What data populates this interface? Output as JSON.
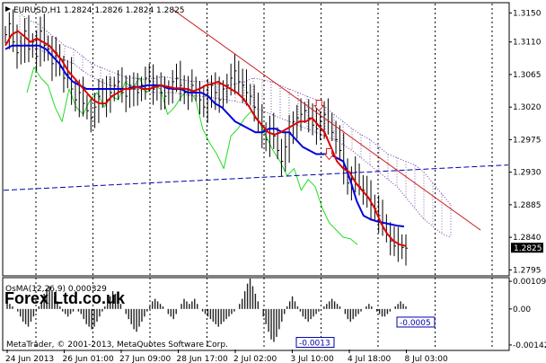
{
  "chart_data": {
    "type": "line",
    "title": "EURUSD,H1  1.2824 1.2826 1.2824 1.2825",
    "watermark": "Forex Ltd.co.uk",
    "copyright": "MetaTrader, © 2001-2013, MetaQuotes Software Corp.",
    "current_price_label": "1.2825",
    "current_price": 1.2825,
    "main_y_ticks": [
      "1.3150",
      "1.3110",
      "1.3065",
      "1.3020",
      "1.2975",
      "1.2930",
      "1.2885",
      "1.2840",
      "1.2795"
    ],
    "main_y_values": [
      1.315,
      1.311,
      1.3065,
      1.302,
      1.2975,
      1.293,
      1.2885,
      1.284,
      1.2795
    ],
    "ylim": [
      1.2788,
      1.3163
    ],
    "x_ticks": [
      "24 Jun 2013",
      "26 Jun 01:00",
      "27 Jun 09:00",
      "28 Jun 17:00",
      "2 Jul 02:00",
      "3 Jul 10:00",
      "4 Jul 18:00",
      "8 Jul 03:00"
    ],
    "indicator": {
      "name": "OsMA(12,26,9) 0.000329",
      "ticks": [
        "0.00109",
        "0.00",
        "-0.00142"
      ],
      "tick_values": [
        0.00109,
        0.0,
        -0.00142
      ],
      "ylim": [
        -0.0016,
        0.0012
      ],
      "labels": [
        {
          "text": "-0.0013",
          "value": -0.0013
        },
        {
          "text": "-0.0005",
          "value": -0.0005
        }
      ],
      "histogram": [
        0.0003,
        0.0002,
        0.0001,
        0.0,
        -0.0001,
        -0.0003,
        -0.0005,
        -0.0006,
        -0.0007,
        -0.0005,
        -0.0003,
        -0.0001,
        0.0001,
        0.0003,
        0.0006,
        0.0008,
        0.0009,
        0.0007,
        0.0005,
        0.0003,
        0.0001,
        -0.0001,
        -0.0002,
        -0.0003,
        -0.0002,
        -0.0001,
        0.0,
        -0.0001,
        -0.0002,
        -0.0004,
        -0.0006,
        -0.0007,
        -0.0008,
        -0.0007,
        -0.0005,
        -0.0003,
        -0.0001,
        0.0001,
        0.0003,
        0.0005,
        0.0007,
        0.0006,
        0.0004,
        0.0002,
        0.0,
        -0.0002,
        -0.0004,
        -0.0006,
        -0.0008,
        -0.0009,
        -0.0007,
        -0.0005,
        -0.0003,
        -0.0001,
        0.0001,
        0.0003,
        0.0004,
        0.0003,
        0.0002,
        0.0001,
        0.0,
        -0.0002,
        -0.0003,
        -0.0004,
        -0.0002,
        0.0,
        0.0002,
        0.0004,
        0.0003,
        0.0002,
        0.0003,
        0.0004,
        0.0002,
        0.0,
        -0.0001,
        -0.0002,
        -0.0003,
        -0.0004,
        -0.0005,
        -0.0006,
        -0.0007,
        -0.0006,
        -0.0005,
        -0.0004,
        -0.0003,
        -0.0002,
        -0.0001,
        0.0,
        0.0002,
        0.0004,
        0.0007,
        0.001,
        0.0012,
        0.0009,
        0.0006,
        0.0003,
        0.0,
        -0.0003,
        -0.0006,
        -0.0009,
        -0.0012,
        -0.0013,
        -0.0011,
        -0.0008,
        -0.0005,
        -0.0002,
        0.0001,
        0.0003,
        0.0005,
        0.0003,
        0.0001,
        -0.0001,
        -0.0003,
        -0.0004,
        -0.0005,
        -0.0004,
        -0.0003,
        -0.0002,
        -0.0001,
        0.0,
        0.0001,
        0.0002,
        0.0003,
        0.0004,
        0.0003,
        0.0002,
        0.0001,
        0.0,
        -0.0002,
        -0.0004,
        -0.0005,
        -0.0004,
        -0.0003,
        -0.0002,
        -0.0001,
        0.0,
        0.0001,
        0.0002,
        0.0001,
        0.0,
        -0.0001,
        -0.0002,
        -0.0003,
        -0.0003,
        -0.0002,
        -0.0001,
        0.0,
        0.0001,
        0.0002,
        0.0003,
        0.0002,
        0.0001
      ]
    },
    "series": [
      {
        "legend": "",
        "color": "#000000",
        "style": "bars",
        "close": [
          1.312,
          1.3135,
          1.311,
          1.3095,
          1.3105,
          1.3125,
          1.31,
          1.311,
          1.309,
          1.3125,
          1.3105,
          1.31,
          1.308,
          1.3095,
          1.3075,
          1.306,
          1.3065,
          1.3045,
          1.303,
          1.304,
          1.3025,
          1.3015,
          1.3005,
          1.302,
          1.3035,
          1.3045,
          1.303,
          1.304,
          1.305,
          1.3055,
          1.304,
          1.3035,
          1.305,
          1.3045,
          1.304,
          1.305,
          1.306,
          1.3055,
          1.3045,
          1.305,
          1.304,
          1.3035,
          1.3045,
          1.3055,
          1.306,
          1.305,
          1.304,
          1.3045,
          1.305,
          1.304,
          1.303,
          1.302,
          1.3035,
          1.305,
          1.304,
          1.303,
          1.3045,
          1.305,
          1.306,
          1.307,
          1.3055,
          1.305,
          1.304,
          1.3035,
          1.302,
          1.3,
          1.2985,
          1.2975,
          1.299,
          1.298,
          1.296,
          1.2945,
          1.2965,
          1.2985,
          1.3,
          1.3005,
          1.301,
          1.3015,
          1.3005,
          1.2995,
          1.299,
          1.3,
          1.301,
          1.3,
          1.2985,
          1.2975,
          1.296,
          1.2935,
          1.2915,
          1.292,
          1.293,
          1.291,
          1.2905,
          1.2895,
          1.2885,
          1.288,
          1.287,
          1.286,
          1.2845,
          1.2835,
          1.2828,
          1.283,
          1.2826,
          1.2825
        ]
      },
      {
        "legend": "",
        "color": "#dd0000",
        "style": "line",
        "values": [
          1.3105,
          1.312,
          1.3125,
          1.3118,
          1.311,
          1.3115,
          1.311,
          1.3105,
          1.3095,
          1.3085,
          1.307,
          1.306,
          1.305,
          1.304,
          1.303,
          1.3025,
          1.3025,
          1.3035,
          1.304,
          1.3045,
          1.3045,
          1.3048,
          1.3045,
          1.3045,
          1.3048,
          1.305,
          1.3048,
          1.3046,
          1.3046,
          1.3045,
          1.3042,
          1.3045,
          1.305,
          1.3052,
          1.3055,
          1.305,
          1.3045,
          1.304,
          1.3032,
          1.302,
          1.3005,
          1.2995,
          1.2985,
          1.2982,
          1.2985,
          1.299,
          1.2995,
          1.3,
          1.3,
          1.3005,
          1.2995,
          1.2985,
          1.2965,
          1.2945,
          1.2935,
          1.293,
          1.2915,
          1.2905,
          1.2895,
          1.288,
          1.286,
          1.2845,
          1.2835,
          1.283,
          1.2828
        ]
      },
      {
        "legend": "",
        "color": "#0000dd",
        "style": "line",
        "values": [
          1.31,
          1.3105,
          1.3105,
          1.3105,
          1.3105,
          1.3105,
          1.31,
          1.309,
          1.308,
          1.3065,
          1.3055,
          1.305,
          1.3045,
          1.3045,
          1.3045,
          1.3045,
          1.3045,
          1.3045,
          1.3045,
          1.3048,
          1.3048,
          1.305,
          1.305,
          1.305,
          1.3046,
          1.3045,
          1.3045,
          1.304,
          1.304,
          1.304,
          1.3035,
          1.3025,
          1.302,
          1.301,
          1.3,
          1.2995,
          1.299,
          1.2985,
          1.2985,
          1.299,
          1.299,
          1.2985,
          1.2985,
          1.2975,
          1.2965,
          1.296,
          1.2955,
          1.2955,
          1.2955,
          1.295,
          1.2945,
          1.292,
          1.289,
          1.287,
          1.2865,
          1.2862,
          1.286,
          1.2858,
          1.2856,
          1.2855
        ]
      },
      {
        "legend": "",
        "color": "#22dd22",
        "style": "line",
        "values": [
          1.304,
          1.3075,
          1.306,
          1.305,
          1.302,
          1.3,
          1.3045,
          1.302,
          1.301,
          1.303,
          1.304,
          1.302,
          1.3035,
          1.303,
          1.3055,
          1.3045,
          1.306,
          1.304,
          1.305,
          1.3045,
          1.301,
          1.302,
          1.3035,
          1.3045,
          1.303,
          1.299,
          1.297,
          1.2955,
          1.2935,
          1.298,
          1.299,
          1.3005,
          1.3015,
          1.3,
          1.298,
          1.296,
          1.2945,
          1.2925,
          1.2935,
          1.2905,
          1.292,
          1.291,
          1.288,
          1.286,
          1.285,
          1.284,
          1.2838,
          1.283
        ]
      },
      {
        "legend": "",
        "color": "#6a3d9a",
        "style": "cloud",
        "upper": [
          1.315,
          1.314,
          1.3135,
          1.3125,
          1.3115,
          1.3105,
          1.31,
          1.309,
          1.308,
          1.3075,
          1.307,
          1.3065,
          1.306,
          1.306,
          1.3058,
          1.306,
          1.3062,
          1.306,
          1.3058,
          1.3056,
          1.3055,
          1.3055,
          1.3052,
          1.305,
          1.3052,
          1.3055,
          1.306,
          1.3058,
          1.3055,
          1.305,
          1.3045,
          1.304,
          1.3035,
          1.303,
          1.302,
          1.301,
          1.3,
          1.299,
          1.2982,
          1.2975,
          1.2965,
          1.2955,
          1.295,
          1.2945,
          1.294,
          1.293,
          1.2915,
          1.29,
          1.2885
        ],
        "lower": [
          1.311,
          1.3105,
          1.31,
          1.3095,
          1.309,
          1.3085,
          1.308,
          1.307,
          1.3062,
          1.3055,
          1.305,
          1.3048,
          1.3045,
          1.3045,
          1.3042,
          1.304,
          1.304,
          1.304,
          1.3038,
          1.3036,
          1.3035,
          1.3034,
          1.3032,
          1.303,
          1.3028,
          1.3025,
          1.302,
          1.3015,
          1.301,
          1.3005,
          1.3,
          1.2995,
          1.299,
          1.2985,
          1.298,
          1.2975,
          1.2968,
          1.296,
          1.295,
          1.294,
          1.293,
          1.292,
          1.291,
          1.2895,
          1.288,
          1.2865,
          1.2855,
          1.2845,
          1.284
        ]
      }
    ],
    "trendlines": [
      {
        "color": "#cc2222",
        "style": "solid",
        "from": [
          0.335,
          1.3155
        ],
        "to": [
          0.945,
          1.285
        ]
      },
      {
        "color": "#0000aa",
        "style": "dashed",
        "from": [
          0.0,
          1.2905
        ],
        "to": [
          1.0,
          1.294
        ]
      }
    ],
    "arrows": [
      {
        "direction": "down",
        "color": "#cc2222",
        "at": [
          0.625,
          1.3022
        ]
      },
      {
        "direction": "down",
        "color": "#cc2222",
        "at": [
          0.645,
          1.2955
        ]
      }
    ],
    "grid": true,
    "grid_style": "dashed vertical black"
  }
}
